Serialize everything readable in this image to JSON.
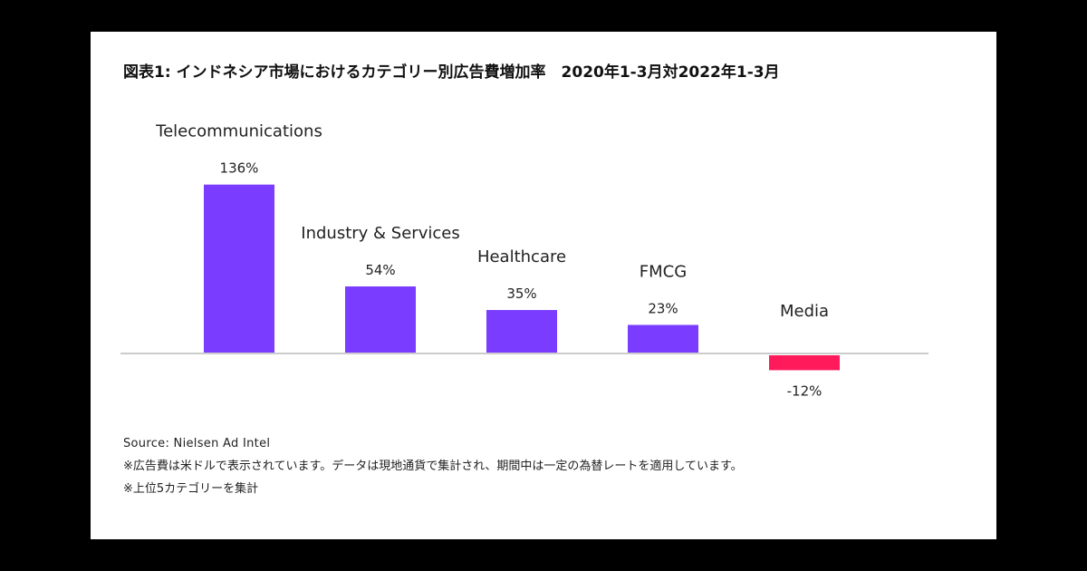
{
  "colors": {
    "positive": "#7a3cff",
    "negative": "#ff1a5c",
    "axis": "#cccccc",
    "text": "#222222"
  },
  "chart_data": {
    "type": "bar",
    "title": "図表1: インドネシア市場におけるカテゴリー別広告費増加率　2020年1-3月対2022年1-3月",
    "categories": [
      "Telecommunications",
      "Industry & Services",
      "Healthcare",
      "FMCG",
      "Media"
    ],
    "values": [
      136,
      54,
      35,
      23,
      -12
    ],
    "value_labels": [
      "136%",
      "54%",
      "35%",
      "23%",
      "-12%"
    ],
    "unit": "%",
    "ylim": [
      -20,
      150
    ],
    "grid": false,
    "legend": "none"
  },
  "notes": {
    "source": "Source: Nielsen Ad Intel",
    "note1": "※広告費は米ドルで表示されています。データは現地通貨で集計され、期間中は一定の為替レートを適用しています。",
    "note2": "※上位5カテゴリーを集計"
  }
}
